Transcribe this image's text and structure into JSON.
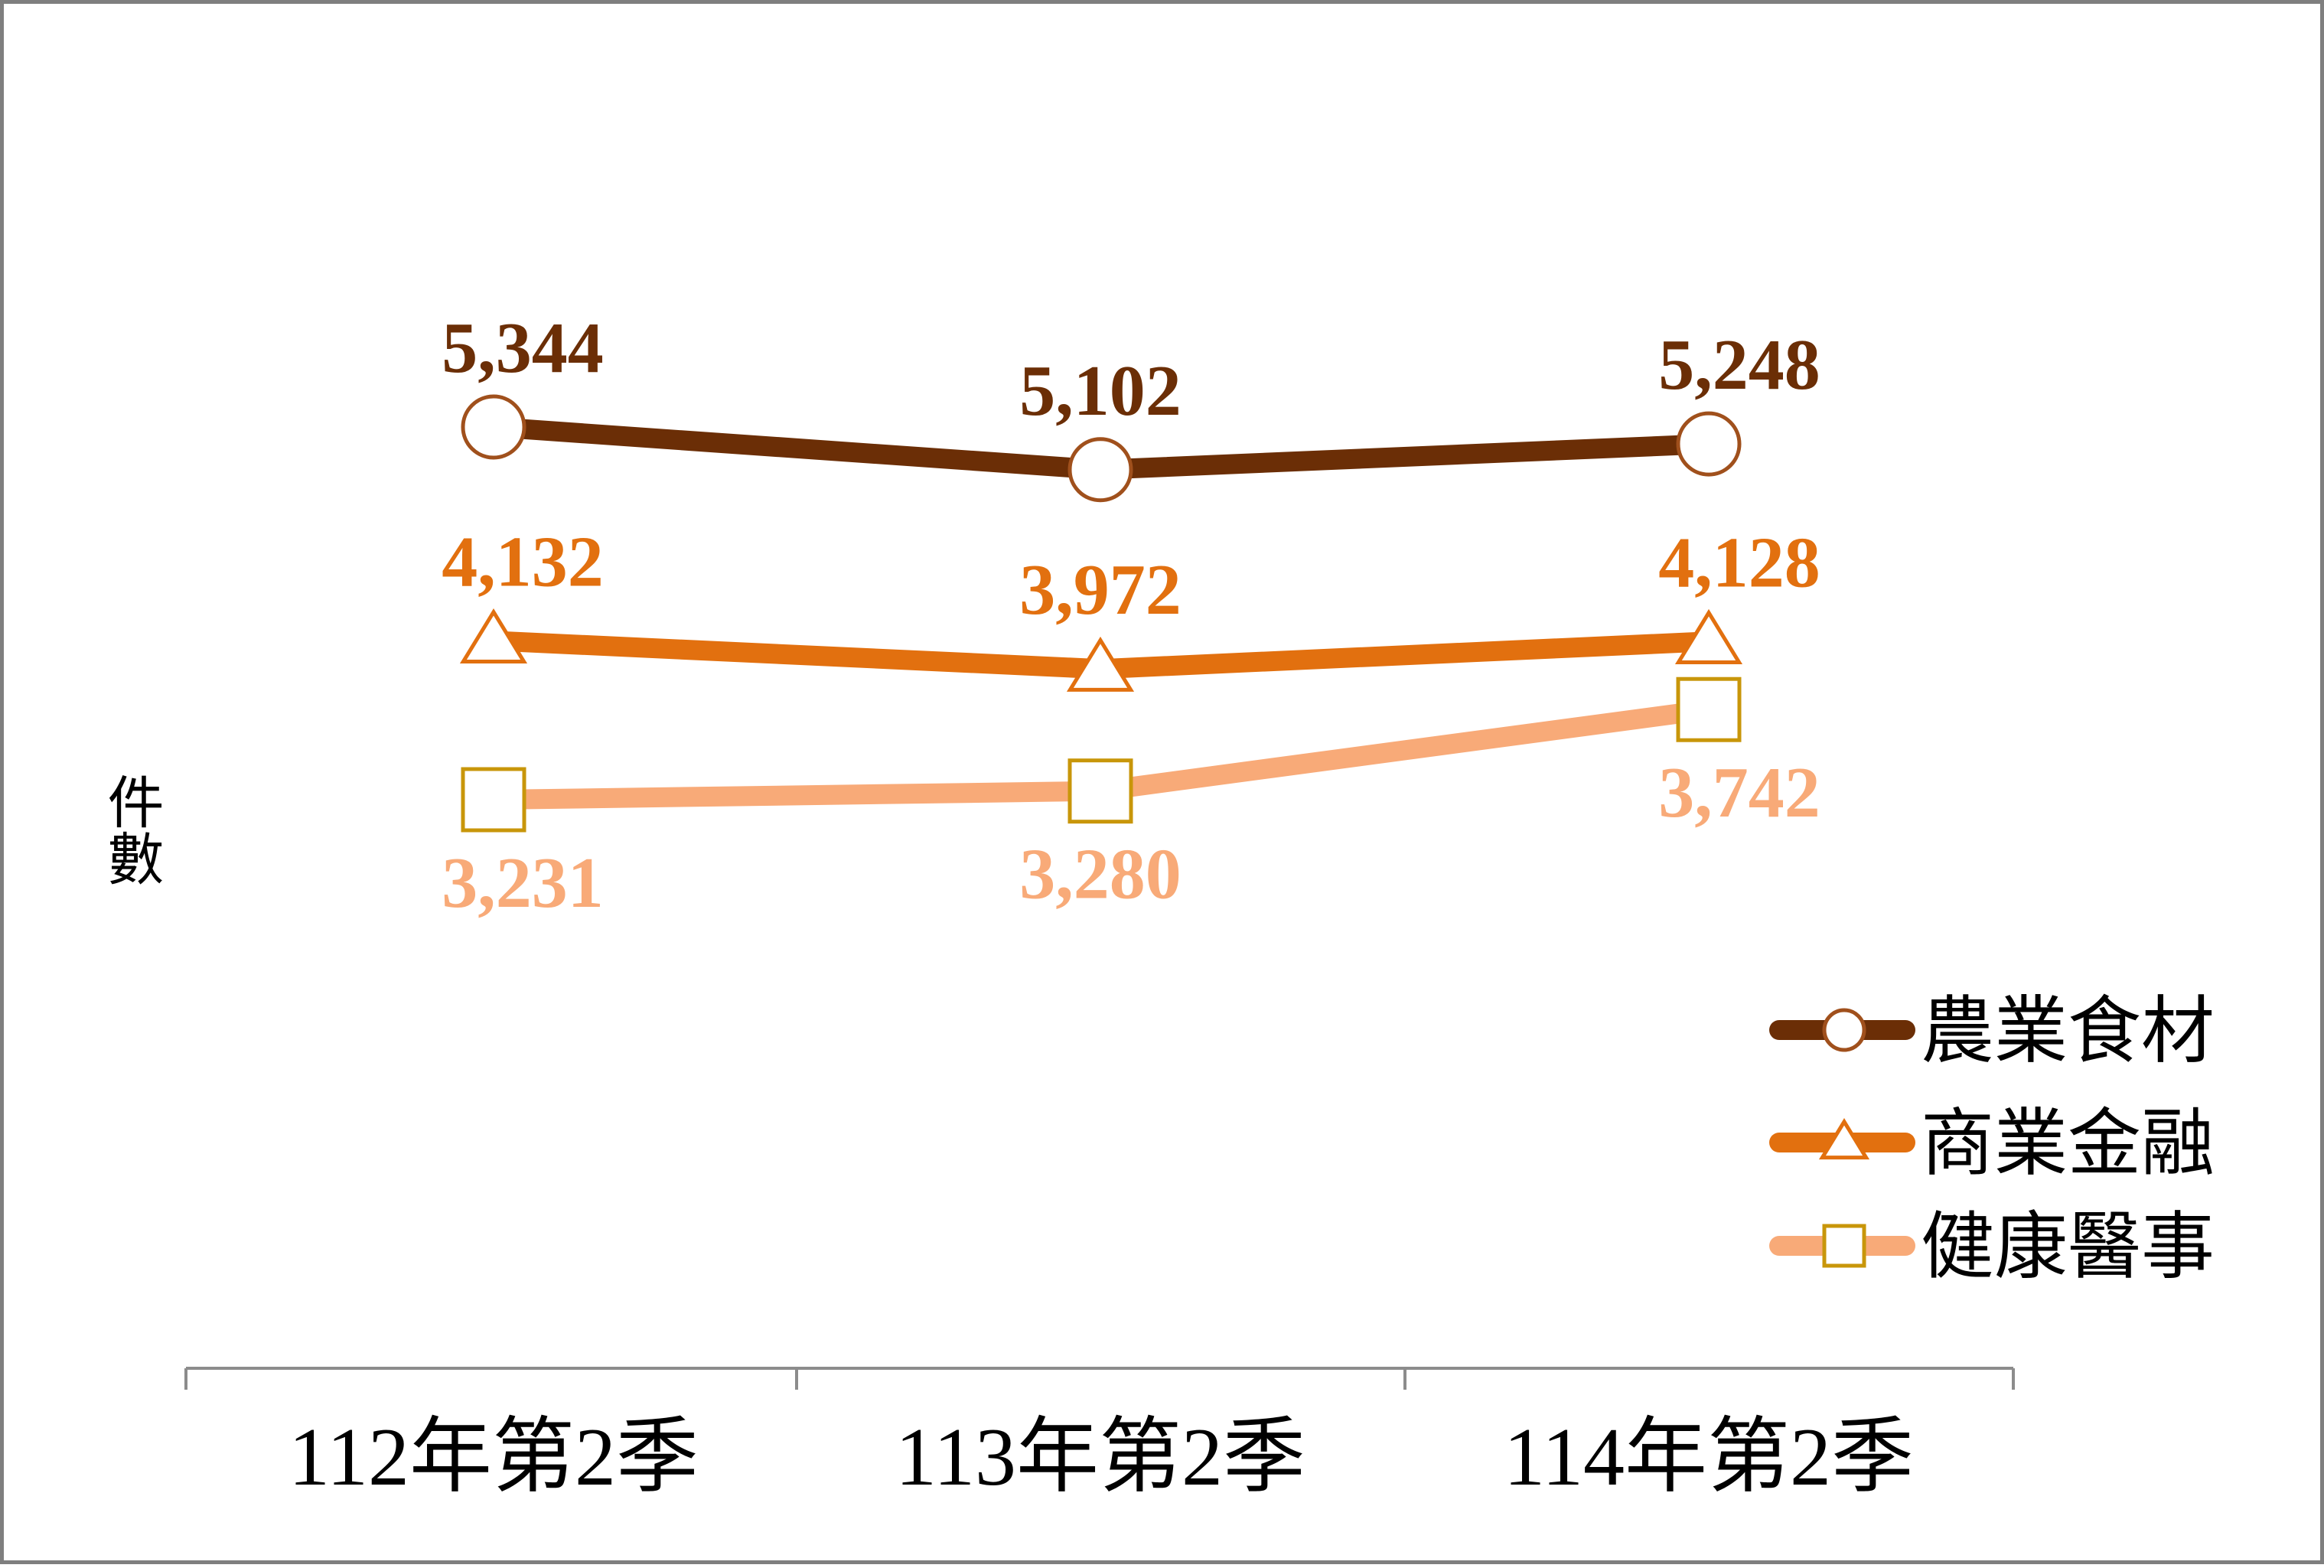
{
  "chart_data": {
    "type": "line",
    "categories": [
      "112年第2季",
      "113年第2季",
      "114年第2季"
    ],
    "ylabel": "件數",
    "ylim": [
      2900,
      5900
    ],
    "grid": false,
    "legend_position": "right",
    "series": [
      {
        "name": "農業食材",
        "values": [
          5344,
          5102,
          5248
        ],
        "labels": [
          "5,344",
          "5,102",
          "5,248"
        ],
        "color": "#6b2e06",
        "marker": "circle",
        "marker_color": "#a0501c",
        "label_position": "above"
      },
      {
        "name": "商業金融",
        "values": [
          4132,
          3972,
          4128
        ],
        "labels": [
          "4,132",
          "3,972",
          "4,128"
        ],
        "color": "#e2700f",
        "marker": "triangle",
        "marker_color": "#e2700f",
        "label_position": "above"
      },
      {
        "name": "健康醫事",
        "values": [
          3231,
          3280,
          3742
        ],
        "labels": [
          "3,231",
          "3,280",
          "3,742"
        ],
        "color": "#f8aa78",
        "marker": "square",
        "marker_color": "#c8960a",
        "label_position": "below"
      }
    ]
  }
}
